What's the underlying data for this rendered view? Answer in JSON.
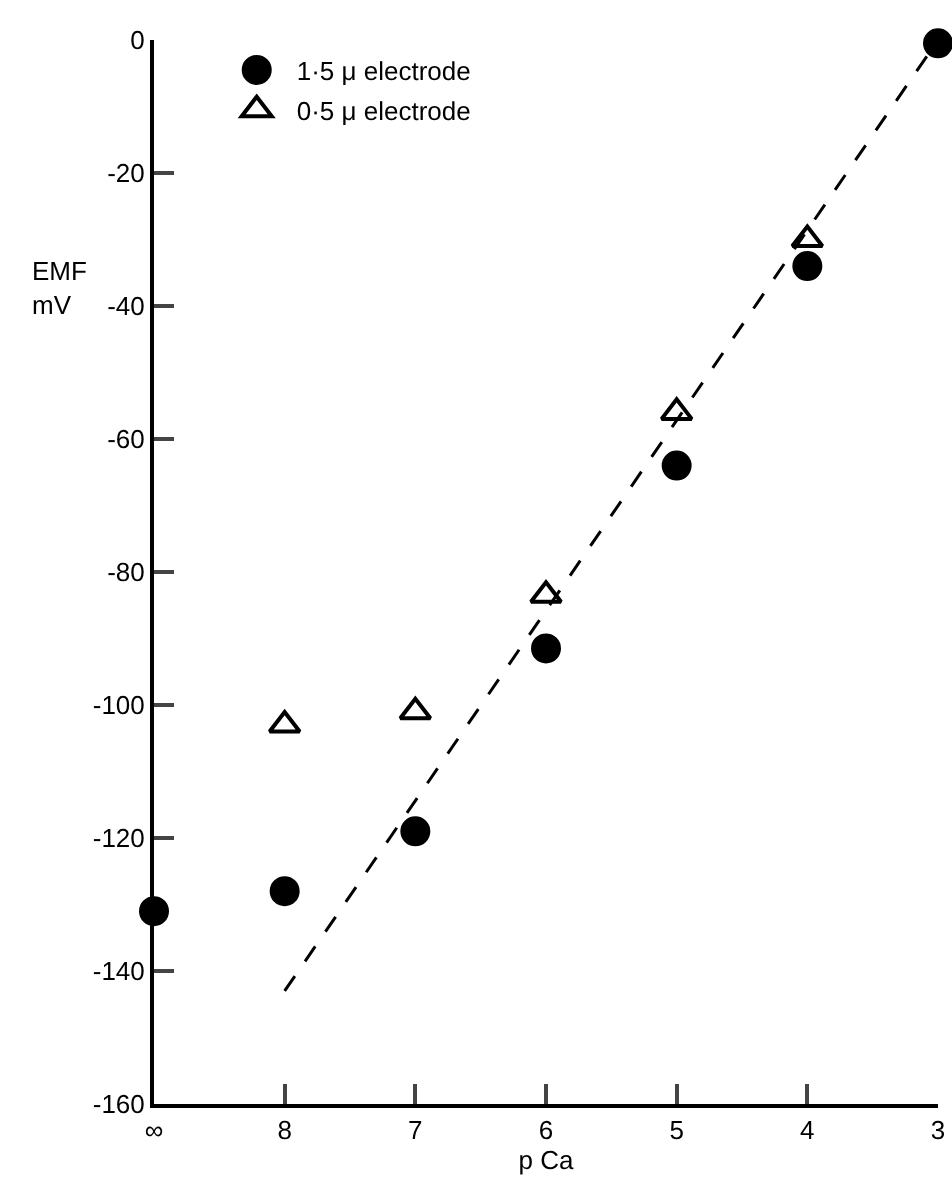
{
  "chart_data": {
    "type": "scatter",
    "xlabel": "p Ca",
    "ylabel": "EMF\nmV",
    "categories": [
      "∞",
      "8",
      "7",
      "6",
      "5",
      "4",
      "3"
    ],
    "ylim": [
      -160,
      0
    ],
    "yticks": [
      -160,
      -140,
      -120,
      -100,
      -80,
      -60,
      -40,
      -20,
      0
    ],
    "grid": false,
    "legend": "top left",
    "series": [
      {
        "name": "1·5 μ electrode",
        "color": "#000000",
        "marker": "circle",
        "values": [
          -131,
          -128,
          -119,
          -91.5,
          -64,
          -34,
          -0.5
        ]
      },
      {
        "name": "0·5 μ electrode",
        "color": "#000000",
        "marker": "triangle",
        "values": [
          null,
          -103,
          -101,
          -83.5,
          -56,
          -30,
          null
        ]
      },
      {
        "type": "line",
        "color": "#000000",
        "marker": "none",
        "line_style": "dashed",
        "x": [
          "8",
          "3"
        ],
        "values": [
          -143,
          0
        ]
      }
    ]
  }
}
